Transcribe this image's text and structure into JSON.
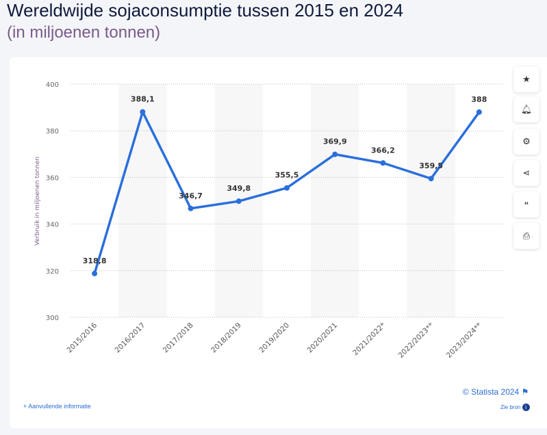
{
  "header": {
    "title": "Wereldwijde sojaconsumptie tussen 2015 en 2024",
    "subtitle": "(in miljoenen tonnen)"
  },
  "chart_data": {
    "type": "line",
    "categories": [
      "2015/2016",
      "2016/2017",
      "2017/2018",
      "2018/2019",
      "2019/2020",
      "2020/2021",
      "2021/2022*",
      "2022/2023**",
      "2023/2024**"
    ],
    "series": [
      {
        "values": [
          318.8,
          388.1,
          346.7,
          349.8,
          355.5,
          369.9,
          366.2,
          359.5,
          388
        ]
      }
    ],
    "data_labels": [
      "318,8",
      "388,1",
      "346,7",
      "349,8",
      "355,5",
      "369,9",
      "366,2",
      "359,5",
      "388"
    ],
    "ylabel": "Verbruik in miljoenen tonnen",
    "ylim": [
      300,
      400
    ],
    "yticks": [
      300,
      320,
      340,
      360,
      380,
      400
    ],
    "grid": true,
    "line_color": "#2a6fdb"
  },
  "toolbar": {
    "buttons": [
      "star-icon",
      "bell-icon",
      "gear-icon",
      "share-icon",
      "quote-icon",
      "print-icon"
    ]
  },
  "footer": {
    "credit": "© Statista 2024",
    "more_info": "+ Aanvullende informatie",
    "source": "Zie bron"
  }
}
